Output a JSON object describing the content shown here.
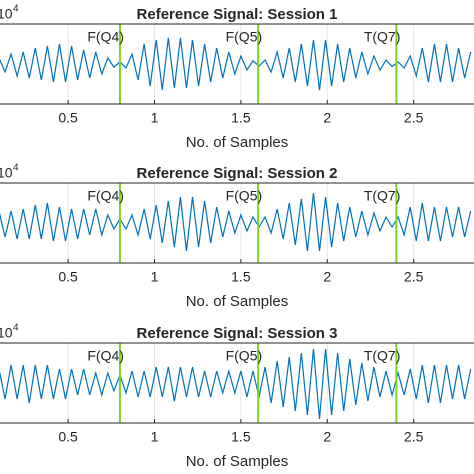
{
  "chart_data": [
    {
      "type": "line",
      "title": "Reference Signal: Session 1",
      "xlabel": "No. of Samples",
      "exponent_base": "10",
      "exponent_power": "4",
      "xlim": [
        0.1,
        2.855
      ],
      "ylim": [
        -1,
        1
      ],
      "xticks": [
        0.5,
        1,
        1.5,
        2,
        2.5
      ],
      "grid": true,
      "color": "#0072bd",
      "marker_color": "#77d42b",
      "markers": [
        {
          "x": 0.8,
          "label": "F(Q4)"
        },
        {
          "x": 1.6,
          "label": "F(Q5)"
        },
        {
          "x": 2.4,
          "label": "T(Q7)"
        }
      ],
      "x": [
        0.1,
        0.135,
        0.17,
        0.205,
        0.24,
        0.275,
        0.31,
        0.345,
        0.38,
        0.415,
        0.45,
        0.485,
        0.52,
        0.555,
        0.59,
        0.625,
        0.66,
        0.695,
        0.73,
        0.765,
        0.8,
        0.835,
        0.87,
        0.905,
        0.94,
        0.975,
        1.01,
        1.045,
        1.08,
        1.115,
        1.15,
        1.185,
        1.22,
        1.255,
        1.29,
        1.325,
        1.36,
        1.395,
        1.43,
        1.465,
        1.5,
        1.535,
        1.57,
        1.605,
        1.64,
        1.675,
        1.71,
        1.745,
        1.78,
        1.815,
        1.85,
        1.885,
        1.92,
        1.955,
        1.99,
        2.025,
        2.06,
        2.095,
        2.13,
        2.165,
        2.2,
        2.235,
        2.27,
        2.305,
        2.34,
        2.375,
        2.41,
        2.445,
        2.48,
        2.515,
        2.55,
        2.585,
        2.62,
        2.655,
        2.69,
        2.725,
        2.76,
        2.795,
        2.83
      ],
      "values": [
        0.15,
        -0.2,
        0.25,
        -0.3,
        0.3,
        -0.35,
        0.4,
        -0.4,
        0.45,
        -0.45,
        0.5,
        -0.45,
        0.45,
        -0.4,
        0.35,
        -0.35,
        0.3,
        -0.25,
        0.15,
        -0.08,
        0.05,
        -0.1,
        0.25,
        -0.4,
        0.5,
        -0.55,
        0.6,
        -0.65,
        0.65,
        -0.6,
        0.65,
        -0.6,
        0.6,
        -0.55,
        0.5,
        -0.45,
        0.4,
        -0.35,
        0.3,
        -0.25,
        0.2,
        -0.15,
        0.08,
        -0.05,
        0.1,
        -0.2,
        0.3,
        -0.35,
        0.4,
        -0.45,
        0.5,
        -0.55,
        0.6,
        -0.65,
        0.6,
        -0.55,
        0.5,
        -0.45,
        0.4,
        -0.35,
        0.3,
        -0.25,
        0.2,
        -0.15,
        0.1,
        -0.06,
        0.05,
        -0.1,
        0.2,
        -0.3,
        0.4,
        -0.45,
        0.5,
        -0.45,
        0.5,
        -0.45,
        0.4,
        -0.35,
        0.3
      ]
    },
    {
      "type": "line",
      "title": "Reference Signal: Session 2",
      "xlabel": "No. of Samples",
      "exponent_base": "10",
      "exponent_power": "4",
      "xlim": [
        0.1,
        2.855
      ],
      "ylim": [
        -1,
        1
      ],
      "xticks": [
        0.5,
        1,
        1.5,
        2,
        2.5
      ],
      "grid": true,
      "color": "#0072bd",
      "marker_color": "#77d42b",
      "markers": [
        {
          "x": 0.8,
          "label": "F(Q4)"
        },
        {
          "x": 1.6,
          "label": "F(Q5)"
        },
        {
          "x": 2.4,
          "label": "T(Q7)"
        }
      ],
      "x": [
        0.1,
        0.135,
        0.17,
        0.205,
        0.24,
        0.275,
        0.31,
        0.345,
        0.38,
        0.415,
        0.45,
        0.485,
        0.52,
        0.555,
        0.59,
        0.625,
        0.66,
        0.695,
        0.73,
        0.765,
        0.8,
        0.835,
        0.87,
        0.905,
        0.94,
        0.975,
        1.01,
        1.045,
        1.08,
        1.115,
        1.15,
        1.185,
        1.22,
        1.255,
        1.29,
        1.325,
        1.36,
        1.395,
        1.43,
        1.465,
        1.5,
        1.535,
        1.57,
        1.605,
        1.64,
        1.675,
        1.71,
        1.745,
        1.78,
        1.815,
        1.85,
        1.885,
        1.92,
        1.955,
        1.99,
        2.025,
        2.06,
        2.095,
        2.13,
        2.165,
        2.2,
        2.235,
        2.27,
        2.305,
        2.34,
        2.375,
        2.41,
        2.445,
        2.48,
        2.515,
        2.55,
        2.585,
        2.62,
        2.655,
        2.69,
        2.725,
        2.76,
        2.795,
        2.83
      ],
      "values": [
        0.3,
        -0.35,
        0.3,
        -0.4,
        0.35,
        -0.4,
        0.45,
        -0.4,
        0.5,
        -0.45,
        0.4,
        -0.45,
        0.35,
        -0.4,
        0.35,
        -0.3,
        0.35,
        -0.3,
        0.2,
        -0.15,
        0.1,
        -0.15,
        0.2,
        -0.3,
        0.35,
        -0.4,
        0.45,
        -0.5,
        0.55,
        -0.6,
        0.65,
        -0.7,
        0.65,
        -0.6,
        0.55,
        -0.5,
        0.4,
        -0.35,
        0.3,
        -0.25,
        0.2,
        -0.2,
        0.15,
        -0.1,
        0.15,
        -0.25,
        0.35,
        -0.4,
        0.5,
        -0.55,
        0.6,
        -0.7,
        0.75,
        -0.7,
        0.65,
        -0.6,
        0.5,
        -0.45,
        0.4,
        -0.35,
        0.3,
        -0.3,
        0.25,
        -0.2,
        0.15,
        -0.1,
        0.15,
        -0.3,
        0.4,
        -0.45,
        0.5,
        -0.45,
        0.4,
        -0.45,
        0.4,
        -0.35,
        0.4,
        -0.35,
        0.3
      ]
    },
    {
      "type": "line",
      "title": "Reference Signal: Session 3",
      "xlabel": "No. of Samples",
      "exponent_base": "10",
      "exponent_power": "4",
      "xlim": [
        0.1,
        2.855
      ],
      "ylim": [
        -1,
        1
      ],
      "xticks": [
        0.5,
        1,
        1.5,
        2,
        2.5
      ],
      "grid": true,
      "color": "#0072bd",
      "marker_color": "#77d42b",
      "markers": [
        {
          "x": 0.8,
          "label": "F(Q4)"
        },
        {
          "x": 1.6,
          "label": "F(Q5)"
        },
        {
          "x": 2.4,
          "label": "T(Q7)"
        }
      ],
      "x": [
        0.1,
        0.135,
        0.17,
        0.205,
        0.24,
        0.275,
        0.31,
        0.345,
        0.38,
        0.415,
        0.45,
        0.485,
        0.52,
        0.555,
        0.59,
        0.625,
        0.66,
        0.695,
        0.73,
        0.765,
        0.8,
        0.835,
        0.87,
        0.905,
        0.94,
        0.975,
        1.01,
        1.045,
        1.08,
        1.115,
        1.15,
        1.185,
        1.22,
        1.255,
        1.29,
        1.325,
        1.36,
        1.395,
        1.43,
        1.465,
        1.5,
        1.535,
        1.57,
        1.605,
        1.64,
        1.675,
        1.71,
        1.745,
        1.78,
        1.815,
        1.85,
        1.885,
        1.92,
        1.955,
        1.99,
        2.025,
        2.06,
        2.095,
        2.13,
        2.165,
        2.2,
        2.235,
        2.27,
        2.305,
        2.34,
        2.375,
        2.41,
        2.445,
        2.48,
        2.515,
        2.55,
        2.585,
        2.62,
        2.655,
        2.69,
        2.725,
        2.76,
        2.795,
        2.83
      ],
      "values": [
        0.35,
        -0.4,
        0.45,
        -0.4,
        0.45,
        -0.5,
        0.45,
        -0.4,
        0.45,
        -0.4,
        0.35,
        -0.4,
        0.35,
        -0.3,
        0.35,
        -0.3,
        0.25,
        -0.3,
        0.25,
        -0.2,
        0.2,
        -0.25,
        0.3,
        -0.35,
        0.3,
        -0.35,
        0.4,
        -0.35,
        0.4,
        -0.45,
        0.4,
        -0.35,
        0.4,
        -0.35,
        0.3,
        -0.35,
        0.3,
        -0.25,
        0.3,
        -0.25,
        0.3,
        -0.35,
        0.3,
        -0.35,
        0.4,
        -0.5,
        0.55,
        -0.6,
        0.65,
        -0.7,
        0.75,
        -0.8,
        0.85,
        -0.9,
        0.85,
        -0.8,
        0.75,
        -0.7,
        0.6,
        -0.55,
        0.5,
        -0.45,
        0.4,
        -0.35,
        0.3,
        -0.3,
        0.25,
        -0.3,
        0.35,
        -0.4,
        0.45,
        -0.5,
        0.45,
        -0.5,
        0.45,
        -0.4,
        0.45,
        -0.4,
        0.35
      ]
    }
  ]
}
